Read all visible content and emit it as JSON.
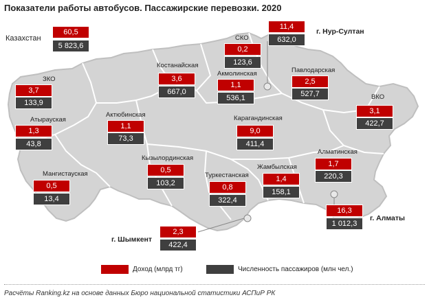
{
  "title": "Показатели работы автобусов. Пассажирские перевозки. 2020",
  "kazakhstan": {
    "label": "Казахстан",
    "income": "60,5",
    "passengers": "5 823,6"
  },
  "regions": [
    {
      "id": "zko",
      "name": "ЗКО",
      "income": "3,7",
      "passengers": "133,9"
    },
    {
      "id": "atyrau",
      "name": "Атырауская",
      "income": "1,3",
      "passengers": "43,8"
    },
    {
      "id": "mangistau",
      "name": "Мангистауская",
      "income": "0,5",
      "passengers": "13,4"
    },
    {
      "id": "aktobe",
      "name": "Актюбинская",
      "income": "1,1",
      "passengers": "73,3"
    },
    {
      "id": "kostanay",
      "name": "Костанайская",
      "income": "3,6",
      "passengers": "667,0"
    },
    {
      "id": "kyzylorda",
      "name": "Кызылординская",
      "income": "0,5",
      "passengers": "103,2"
    },
    {
      "id": "sko",
      "name": "СКО",
      "income": "0,2",
      "passengers": "123,6"
    },
    {
      "id": "akmola",
      "name": "Акмолинская",
      "income": "1,1",
      "passengers": "536,1"
    },
    {
      "id": "karaganda",
      "name": "Карагандинская",
      "income": "9,0",
      "passengers": "411,4"
    },
    {
      "id": "turkestan",
      "name": "Туркестанская",
      "income": "0,8",
      "passengers": "322,4"
    },
    {
      "id": "zhambyl",
      "name": "Жамбылская",
      "income": "1,4",
      "passengers": "158,1"
    },
    {
      "id": "pavlodar",
      "name": "Павлодарская",
      "income": "2,5",
      "passengers": "527,7"
    },
    {
      "id": "vko",
      "name": "ВКО",
      "income": "3,1",
      "passengers": "422,7"
    },
    {
      "id": "almaty-reg",
      "name": "Алматинская",
      "income": "1,7",
      "passengers": "220,3"
    }
  ],
  "cities": [
    {
      "id": "nur-sultan",
      "name": "г. Нур-Султан",
      "income": "11,4",
      "passengers": "632,0"
    },
    {
      "id": "almaty",
      "name": "г. Алматы",
      "income": "16,3",
      "passengers": "1 012,3"
    },
    {
      "id": "shymkent",
      "name": "г. Шымкент",
      "income": "2,3",
      "passengers": "422,4"
    }
  ],
  "legend": {
    "income": {
      "label": "Доход (млрд тг)",
      "color": "#c00000"
    },
    "passengers": {
      "label": "Численность пассажиров (млн чел.)",
      "color": "#3f3f3f"
    }
  },
  "source": "Расчёты Ranking.kz на основе данных Бюро национальной статистики АСПиР РК"
}
